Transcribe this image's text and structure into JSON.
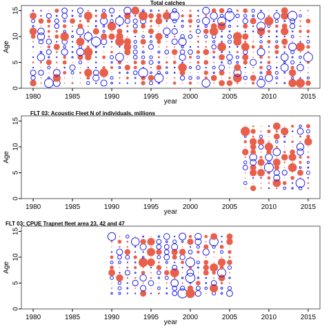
{
  "chart_data": [
    {
      "type": "scatter",
      "title": "Total catches",
      "xlabel": "year",
      "ylabel": "Age",
      "xlim": [
        1978.5,
        2016.5
      ],
      "ylim": [
        0,
        16
      ],
      "xticks": [
        1980,
        1985,
        1990,
        1995,
        2000,
        2005,
        2010,
        2015
      ],
      "yticks": [
        0,
        5,
        10,
        15
      ],
      "years": [
        1980,
        2015
      ],
      "ages": [
        1,
        15
      ]
    },
    {
      "type": "scatter",
      "title": "FLT 03: Acoustic Fleet   N of individuals, millions",
      "xlabel": "year",
      "ylabel": "Age",
      "xlim": [
        1978.5,
        2016.5
      ],
      "ylim": [
        0,
        16
      ],
      "xticks": [
        1980,
        1985,
        1990,
        1995,
        2000,
        2005,
        2010,
        2015
      ],
      "yticks": [
        0,
        5,
        10,
        15
      ],
      "years": [
        2007,
        2015
      ],
      "ages": [
        2,
        14
      ]
    },
    {
      "type": "scatter",
      "title": "FLT 03: CPUE Trapnet fleet area 23, 42 and 47",
      "xlabel": "year",
      "ylabel": "Age",
      "xlim": [
        1978.5,
        2016.5
      ],
      "ylim": [
        0,
        16
      ],
      "xticks": [
        1980,
        1985,
        1990,
        1995,
        2000,
        2005,
        2010,
        2015
      ],
      "yticks": [
        0,
        5,
        10,
        15
      ],
      "years": [
        1990,
        2005
      ],
      "ages": [
        3,
        14
      ]
    }
  ],
  "colors": {
    "positive": "#e8604c",
    "negative": "#1f1fe8"
  }
}
